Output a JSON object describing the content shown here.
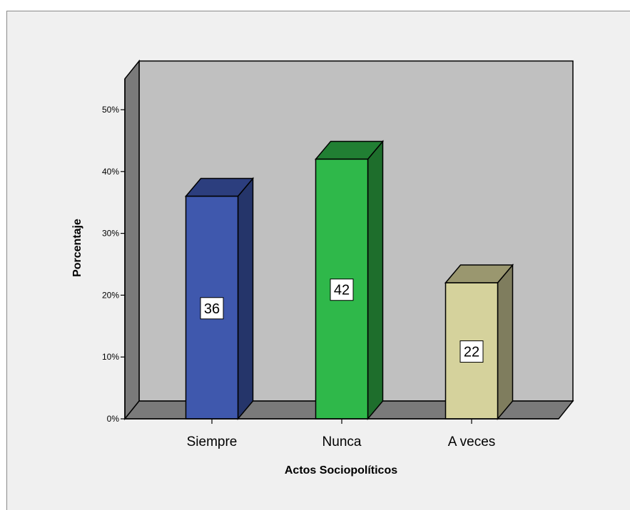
{
  "chart_data": {
    "type": "bar",
    "categories": [
      "Siempre",
      "Nunca",
      "A veces"
    ],
    "values": [
      36,
      42,
      22
    ],
    "data_labels": [
      "36",
      "42",
      "22"
    ],
    "xlabel": "Actos Sociopolíticos",
    "ylabel": "Porcentaje",
    "ylim": [
      0,
      55
    ],
    "yticks": [
      0,
      10,
      20,
      30,
      40,
      50
    ],
    "ytick_labels": [
      "0%",
      "10%",
      "20%",
      "30%",
      "40%",
      "50%"
    ],
    "grid": false,
    "style": "3d",
    "colors": {
      "bars": [
        "#3f58ad",
        "#2fb84a",
        "#d5d29c"
      ],
      "bars_side": [
        "#25356a",
        "#1e6e2c",
        "#7f7d5e"
      ],
      "bars_top": [
        "#2c3e7e",
        "#217f33",
        "#9a976f"
      ],
      "plot_back": "#c0c0c0",
      "plot_wall": "#7a7a7a",
      "plot_floor": "#7a7a7a",
      "background": "#f0f0f0"
    }
  }
}
